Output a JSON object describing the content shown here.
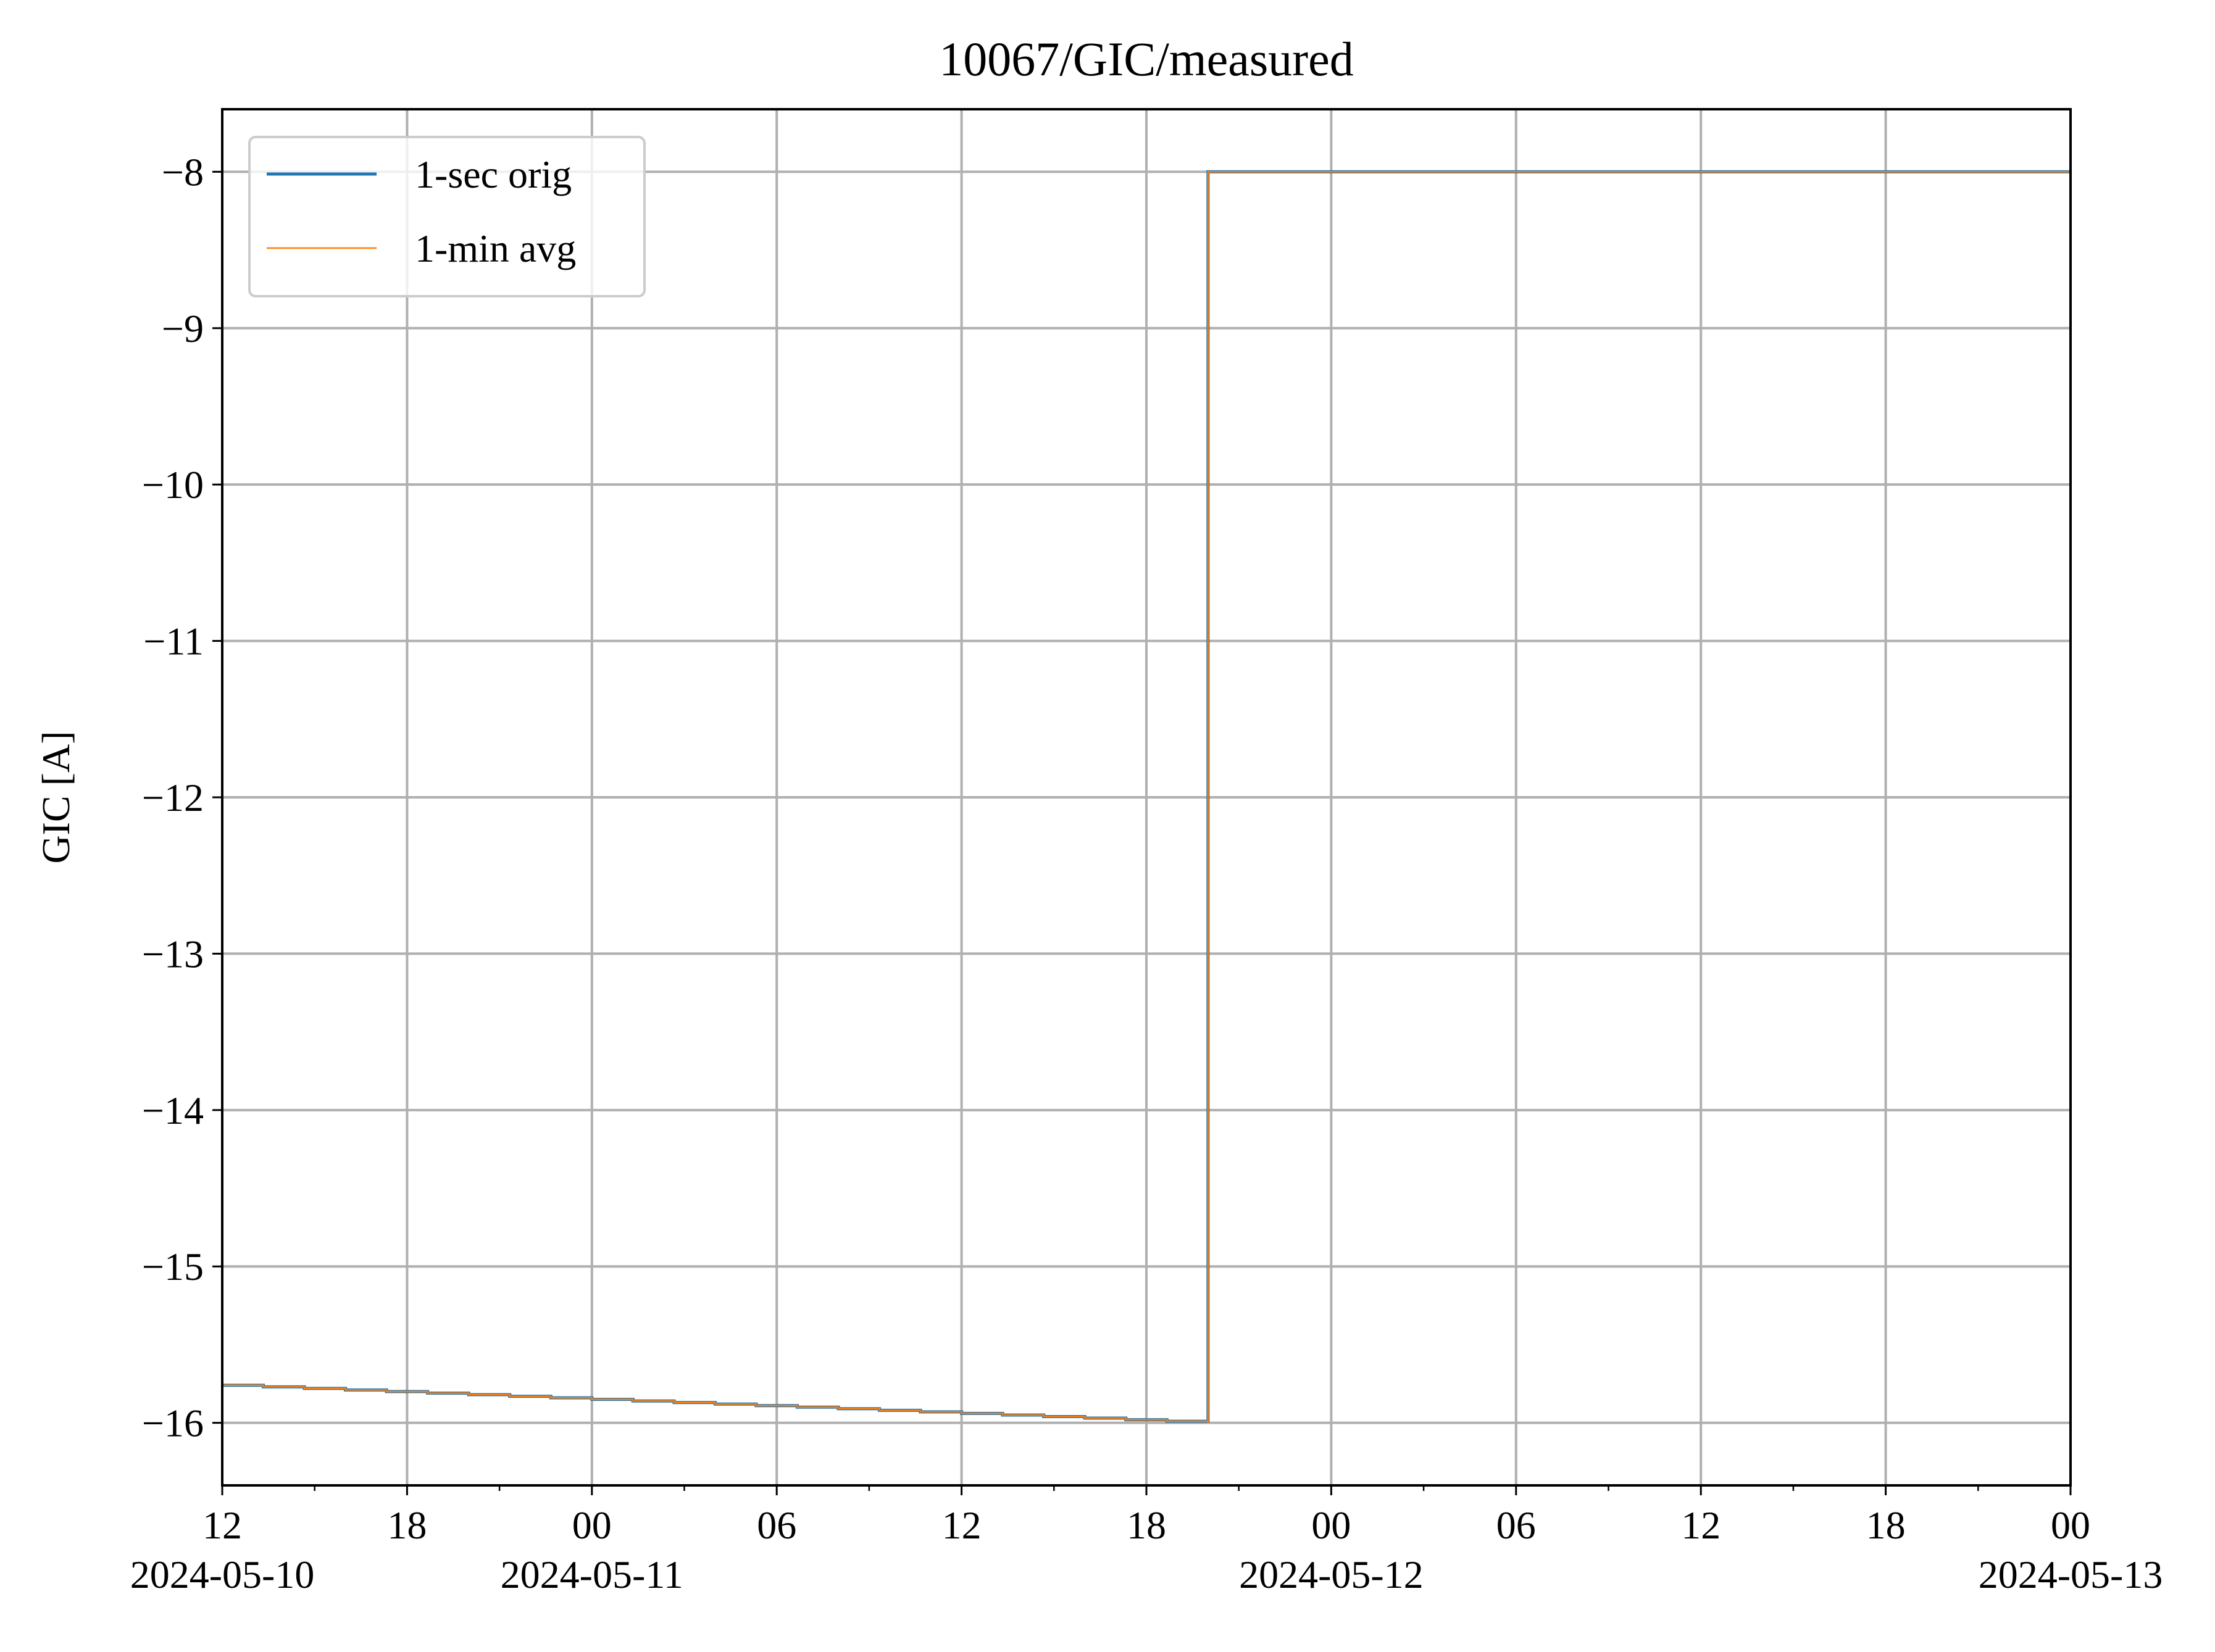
{
  "chart_data": {
    "type": "line",
    "title": "10067/GIC/measured",
    "xlabel": "",
    "ylabel": "GIC [A]",
    "xlim": [
      "2024-05-10 12:00",
      "2024-05-13 00:00"
    ],
    "ylim": [
      -16.4,
      -7.6
    ],
    "grid": true,
    "legend_position": "upper-left",
    "y_ticks": [
      {
        "value": -8,
        "label": "−8"
      },
      {
        "value": -9,
        "label": "−9"
      },
      {
        "value": -10,
        "label": "−10"
      },
      {
        "value": -11,
        "label": "−11"
      },
      {
        "value": -12,
        "label": "−12"
      },
      {
        "value": -13,
        "label": "−13"
      },
      {
        "value": -14,
        "label": "−14"
      },
      {
        "value": -15,
        "label": "−15"
      },
      {
        "value": -16,
        "label": "−16"
      }
    ],
    "x_ticks": [
      {
        "value": "2024-05-10 12:00",
        "label": "12",
        "sublabel": "2024-05-10"
      },
      {
        "value": "2024-05-10 18:00",
        "label": "18",
        "sublabel": ""
      },
      {
        "value": "2024-05-11 00:00",
        "label": "00",
        "sublabel": "2024-05-11"
      },
      {
        "value": "2024-05-11 06:00",
        "label": "06",
        "sublabel": ""
      },
      {
        "value": "2024-05-11 12:00",
        "label": "12",
        "sublabel": ""
      },
      {
        "value": "2024-05-11 18:00",
        "label": "18",
        "sublabel": ""
      },
      {
        "value": "2024-05-12 00:00",
        "label": "00",
        "sublabel": "2024-05-12"
      },
      {
        "value": "2024-05-12 06:00",
        "label": "06",
        "sublabel": ""
      },
      {
        "value": "2024-05-12 12:00",
        "label": "12",
        "sublabel": ""
      },
      {
        "value": "2024-05-12 18:00",
        "label": "18",
        "sublabel": ""
      },
      {
        "value": "2024-05-13 00:00",
        "label": "00",
        "sublabel": "2024-05-13"
      }
    ],
    "series": [
      {
        "name": "1-sec orig",
        "color": "#1f77b4",
        "x": [
          "2024-05-10 12:00",
          "2024-05-11 20:00",
          "2024-05-11 20:00",
          "2024-05-13 00:00"
        ],
        "y": [
          -15.76,
          -16.0,
          -8.0,
          -8.0
        ]
      },
      {
        "name": "1-min avg",
        "color": "#ff7f0e",
        "x": [
          "2024-05-10 12:00",
          "2024-05-11 20:00",
          "2024-05-11 20:00",
          "2024-05-13 00:00"
        ],
        "y": [
          -15.76,
          -16.0,
          -8.0,
          -8.0
        ]
      }
    ]
  }
}
